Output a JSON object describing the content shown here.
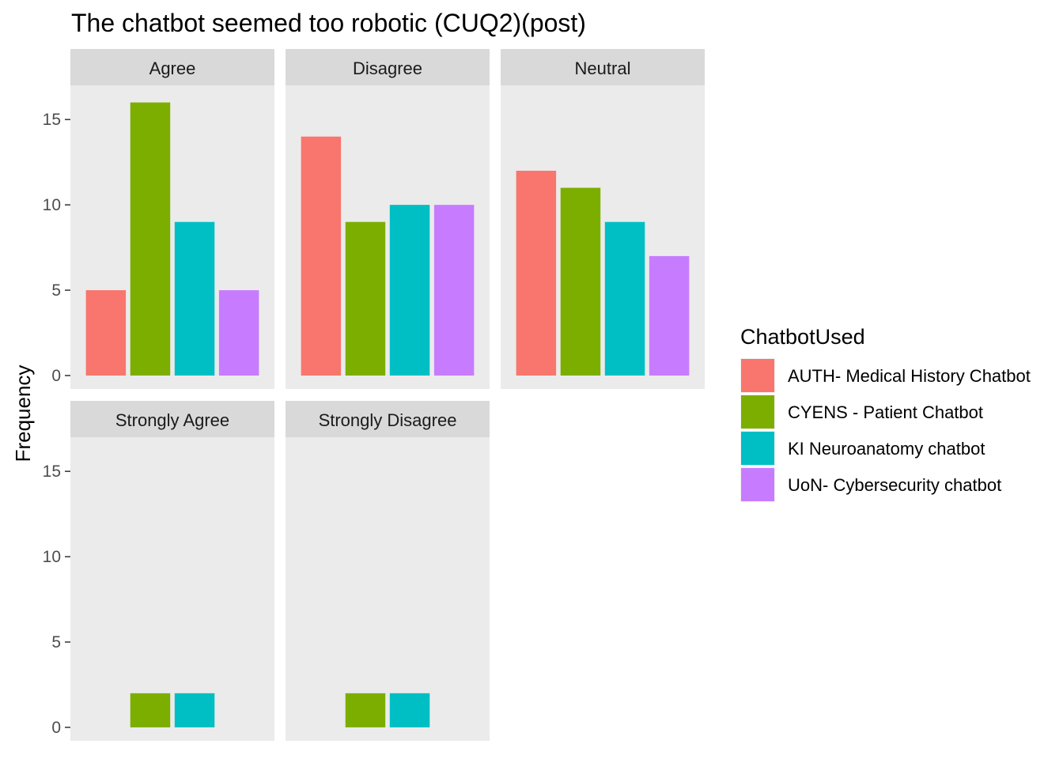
{
  "chart_data": {
    "type": "bar",
    "title": "The chatbot seemed too robotic (CUQ2)(post)",
    "xlabel": "",
    "ylabel": "Frequency",
    "ylim": [
      0,
      17
    ],
    "yticks": [
      0,
      5,
      10,
      15
    ],
    "grid": false,
    "legend_title": "ChatbotUsed",
    "legend_position": "right",
    "series": [
      {
        "name": "AUTH- Medical History Chatbot",
        "color": "#F8766D"
      },
      {
        "name": "CYENS - Patient Chatbot",
        "color": "#7CAE00"
      },
      {
        "name": "KI Neuroanatomy chatbot",
        "color": "#00BFC4"
      },
      {
        "name": "UoN- Cybersecurity chatbot",
        "color": "#C77CFF"
      }
    ],
    "panels": [
      {
        "label": "Agree",
        "values": [
          5,
          16,
          9,
          5
        ]
      },
      {
        "label": "Disagree",
        "values": [
          14,
          9,
          10,
          10
        ]
      },
      {
        "label": "Neutral",
        "values": [
          12,
          11,
          9,
          7
        ]
      },
      {
        "label": "Strongly Agree",
        "values": [
          0,
          2,
          2,
          0
        ]
      },
      {
        "label": "Strongly Disagree",
        "values": [
          0,
          2,
          2,
          0
        ]
      }
    ]
  }
}
